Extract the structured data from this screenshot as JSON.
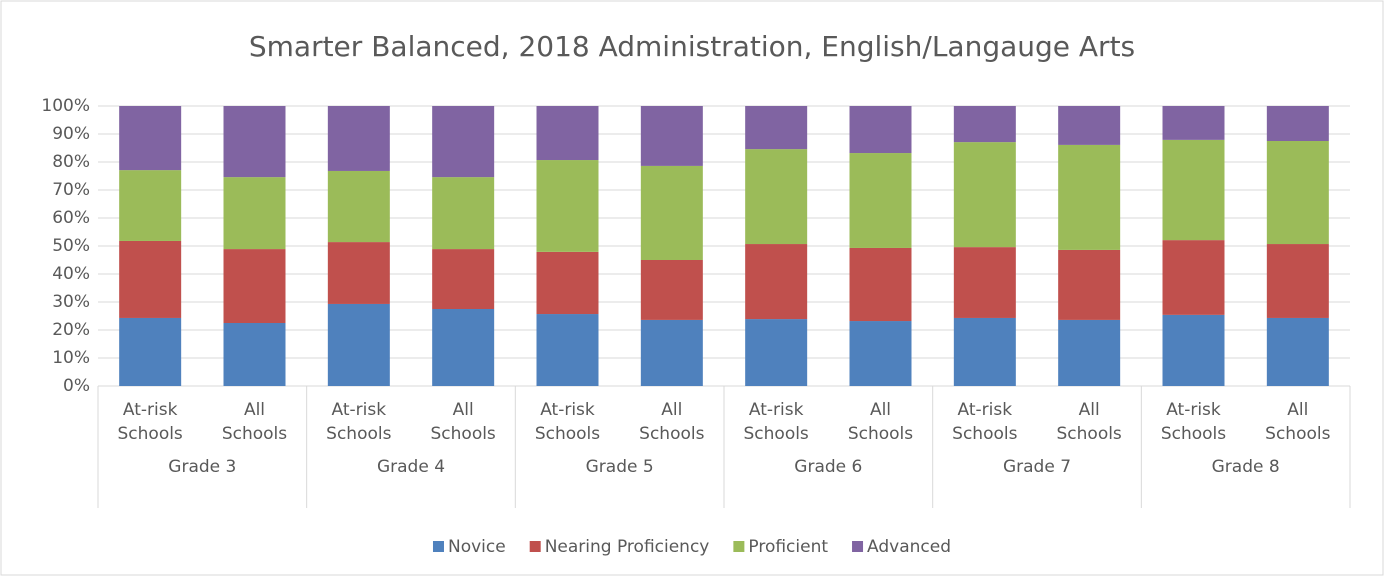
{
  "chart_data": {
    "type": "stacked_bar",
    "title": "Smarter Balanced, 2018 Administration, English/Langauge Arts",
    "categories": [
      "At-risk Schools",
      "All Schools",
      "At-risk Schools",
      "All Schools",
      "At-risk Schools",
      "All Schools",
      "At-risk Schools",
      "All Schools",
      "At-risk Schools",
      "All Schools",
      "At-risk Schools",
      "All Schools"
    ],
    "groups": [
      "Grade 3",
      "Grade 4",
      "Grade 5",
      "Grade 6",
      "Grade 7",
      "Grade 8"
    ],
    "series": [
      {
        "name": "Novice",
        "color": "#4f81bd",
        "values": [
          24.3,
          22.5,
          29.3,
          27.5,
          25.7,
          23.6,
          23.9,
          23.2,
          24.3,
          23.6,
          25.4,
          24.3
        ]
      },
      {
        "name": "Nearing Proficiency",
        "color": "#c0504d",
        "values": [
          27.5,
          26.4,
          22.1,
          21.4,
          22.2,
          21.4,
          26.8,
          26.1,
          25.3,
          25.0,
          26.7,
          26.4
        ]
      },
      {
        "name": "Proficient",
        "color": "#9bbb59",
        "values": [
          25.3,
          25.7,
          25.4,
          25.7,
          32.8,
          33.6,
          33.9,
          33.9,
          37.5,
          37.5,
          35.8,
          36.8
        ]
      },
      {
        "name": "Advanced",
        "color": "#8064a2",
        "values": [
          22.9,
          25.4,
          23.2,
          25.4,
          19.3,
          21.4,
          15.4,
          16.8,
          12.9,
          13.9,
          12.1,
          12.5
        ]
      }
    ],
    "ylim": [
      0,
      100
    ],
    "yticks": [
      {
        "value": 0,
        "label": "0%"
      },
      {
        "value": 10,
        "label": "10%"
      },
      {
        "value": 20,
        "label": "20%"
      },
      {
        "value": 30,
        "label": "30%"
      },
      {
        "value": 40,
        "label": "40%"
      },
      {
        "value": 50,
        "label": "50%"
      },
      {
        "value": 60,
        "label": "60%"
      },
      {
        "value": 70,
        "label": "70%"
      },
      {
        "value": 80,
        "label": "80%"
      },
      {
        "value": 90,
        "label": "90%"
      },
      {
        "value": 100,
        "label": "100%"
      }
    ],
    "grid": true,
    "legend": "bottom"
  }
}
